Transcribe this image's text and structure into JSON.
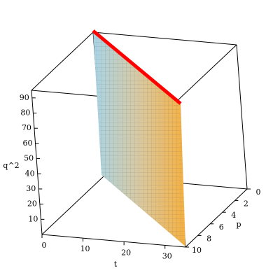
{
  "chart_data": {
    "type": "surface3d",
    "xlabel": "t",
    "ylabel": "p",
    "zlabel": "q^2",
    "xlim": [
      0,
      35
    ],
    "xticks": [
      0,
      10,
      20,
      30
    ],
    "ylim": [
      0,
      10
    ],
    "yticks": [
      0,
      2,
      4,
      6,
      8,
      10
    ],
    "zlim": [
      0,
      95
    ],
    "zticks": [
      10,
      20,
      30,
      40,
      50,
      60,
      70,
      80,
      90
    ]
  }
}
